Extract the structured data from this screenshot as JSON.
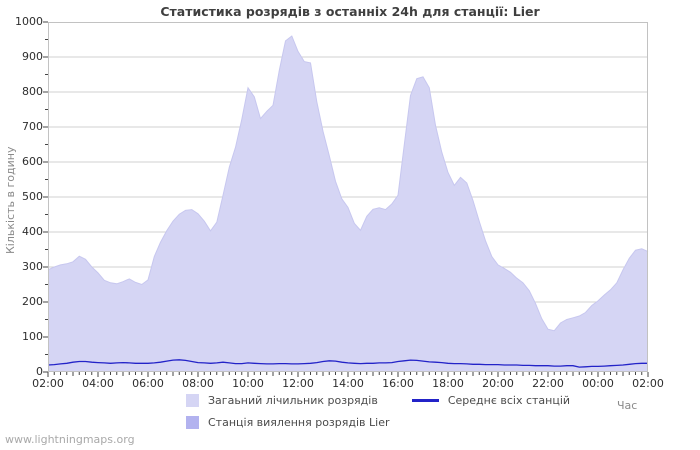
{
  "title": "Статистика розрядів з останніх 24h для станції: Lier",
  "watermark": "www.lightningmaps.org",
  "colors": {
    "area_total": "#d5d5f4",
    "area_total_edge": "#c7c7ef",
    "area_station": "#b2b2ef",
    "line_avg": "#2323c8",
    "grid": "#d2d2d2",
    "plot_border": "#c2c2c2",
    "tick_mark": "#444444",
    "title_text": "#3f3f3f",
    "tick_text": "#2e2e2e",
    "axis_title_text": "#8a8a8a",
    "legend_text": "#4a4a4a",
    "watermark_text": "#a9a9a9"
  },
  "chart_data": {
    "type": "area",
    "title": "Статистика розрядів з останніх 24h для станції: Lier",
    "xlabel": "Час",
    "ylabel": "Кількість в годину",
    "ylim": [
      0,
      1000
    ],
    "y_major_step": 100,
    "y_minor_step": 50,
    "grid": "horizontal",
    "legend_position": "bottom",
    "x_start": "02:00",
    "x_end": "02:00",
    "x_step_minutes": 15,
    "x_tick_labels": [
      "02:00",
      "04:00",
      "06:00",
      "08:00",
      "10:00",
      "12:00",
      "14:00",
      "16:00",
      "18:00",
      "20:00",
      "22:00",
      "00:00",
      "02:00"
    ],
    "y_tick_labels": [
      "0",
      "100",
      "200",
      "300",
      "400",
      "500",
      "600",
      "700",
      "800",
      "900",
      "1000"
    ],
    "legend": [
      {
        "label": "Загаьний лічильник розрядів",
        "type": "area",
        "color": "#d5d5f4"
      },
      {
        "label": "Станція виялення розрядів Lier",
        "type": "area",
        "color": "#b2b2ef"
      },
      {
        "label": "Середнє всіх станцій",
        "type": "line",
        "color": "#2323c8"
      }
    ],
    "series": [
      {
        "name": "Загаьний лічильник розрядів",
        "type": "area",
        "color": "#d5d5f4",
        "values": [
          292,
          300,
          306,
          309,
          315,
          331,
          322,
          300,
          283,
          262,
          255,
          252,
          258,
          266,
          256,
          250,
          263,
          330,
          371,
          404,
          431,
          451,
          462,
          464,
          452,
          431,
          403,
          428,
          505,
          585,
          642,
          722,
          812,
          786,
          724,
          745,
          762,
          862,
          946,
          960,
          916,
          887,
          883,
          772,
          688,
          618,
          545,
          495,
          470,
          425,
          405,
          445,
          465,
          469,
          464,
          480,
          505,
          650,
          790,
          838,
          843,
          812,
          705,
          628,
          570,
          533,
          556,
          540,
          490,
          430,
          375,
          330,
          306,
          296,
          285,
          268,
          255,
          232,
          196,
          152,
          122,
          118,
          140,
          150,
          155,
          160,
          170,
          190,
          203,
          220,
          235,
          255,
          292,
          325,
          348,
          352,
          344
        ]
      },
      {
        "name": "Станція виялення розрядів Lier",
        "type": "area",
        "color": "#b2b2ef",
        "values": [
          0,
          0,
          0,
          0,
          0,
          0,
          0,
          0,
          0,
          0,
          0,
          0,
          0,
          0,
          0,
          0,
          0,
          0,
          0,
          0,
          0,
          0,
          0,
          0,
          0,
          0,
          0,
          0,
          0,
          0,
          0,
          0,
          0,
          0,
          0,
          0,
          0,
          0,
          0,
          0,
          0,
          0,
          0,
          0,
          0,
          0,
          0,
          0,
          0,
          0,
          0,
          0,
          0,
          0,
          0,
          0,
          0,
          0,
          0,
          0,
          0,
          0,
          0,
          0,
          0,
          0,
          0,
          0,
          0,
          0,
          0,
          0,
          0,
          0,
          0,
          0,
          0,
          0,
          0,
          0,
          0,
          0,
          0,
          0,
          0,
          0,
          0,
          0,
          0,
          0,
          0,
          0,
          0,
          0,
          0,
          0,
          0
        ]
      },
      {
        "name": "Середнє всіх станцій",
        "type": "line",
        "color": "#2323c8",
        "values": [
          20,
          21,
          23,
          25,
          28,
          30,
          30,
          28,
          27,
          26,
          25,
          26,
          27,
          26,
          25,
          25,
          25,
          26,
          28,
          31,
          34,
          35,
          33,
          30,
          27,
          26,
          25,
          26,
          28,
          26,
          24,
          24,
          26,
          25,
          24,
          23,
          23,
          24,
          24,
          23,
          23,
          24,
          25,
          27,
          30,
          32,
          31,
          28,
          26,
          25,
          24,
          25,
          25,
          26,
          26,
          27,
          30,
          32,
          34,
          33,
          31,
          29,
          28,
          27,
          25,
          24,
          24,
          23,
          22,
          22,
          21,
          21,
          21,
          20,
          20,
          20,
          19,
          19,
          18,
          18,
          18,
          17,
          17,
          18,
          18,
          14,
          15,
          16,
          16,
          17,
          18,
          19,
          20,
          22,
          24,
          25,
          25
        ]
      }
    ]
  }
}
